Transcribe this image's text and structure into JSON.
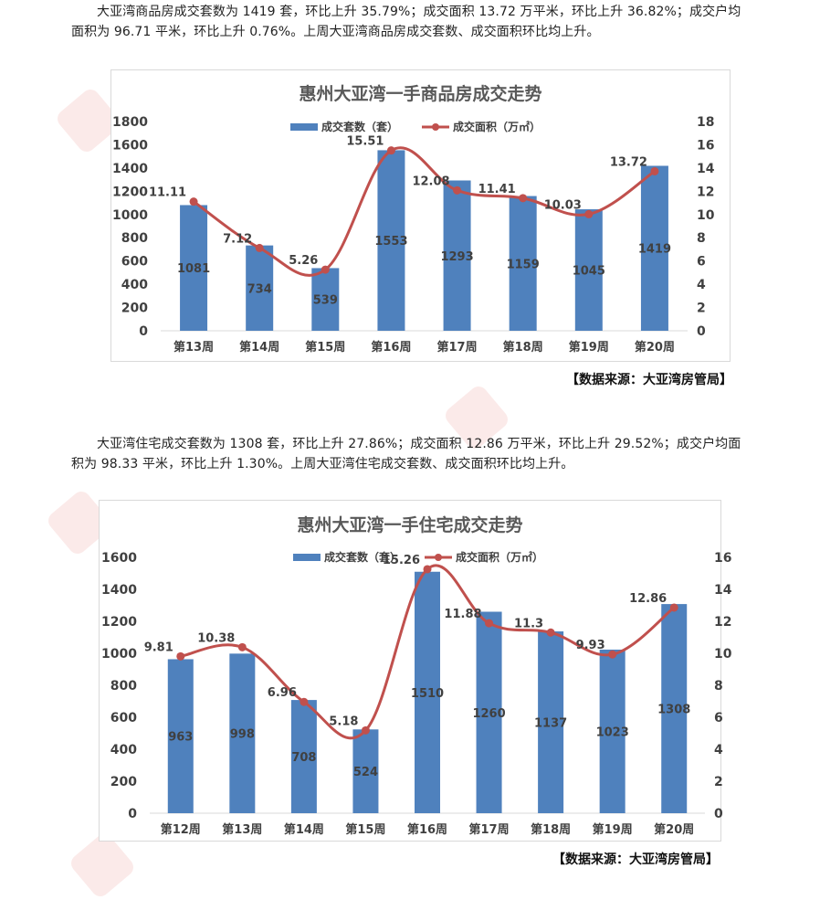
{
  "paragraphs": {
    "p1": "大亚湾商品房成交套数为 1419 套，环比上升 35.79%；成交面积 13.72 万平米，环比上升 36.82%；成交户均面积为 96.71 平米，环比上升 0.76%。上周大亚湾商品房成交套数、成交面积环比均上升。",
    "p2": "大亚湾住宅成交套数为 1308 套，环比上升 27.86%；成交面积 12.86 万平米，环比上升 29.52%；成交户均面积为 98.33 平米，环比上升 1.30%。上周大亚湾住宅成交套数、成交面积环比均上升。"
  },
  "sources": {
    "s1": "【数据来源：大亚湾房管局】",
    "s2": "【数据来源：大亚湾房管局】"
  },
  "colors": {
    "bar": "#4f81bd",
    "line": "#c0504d",
    "watermark": "#dc5046"
  },
  "chart_data": [
    {
      "type": "bar",
      "title": "惠州大亚湾一手商品房成交走势",
      "categories": [
        "第13周",
        "第14周",
        "第15周",
        "第16周",
        "第17周",
        "第18周",
        "第19周",
        "第20周"
      ],
      "series": [
        {
          "name": "成交套数（套）",
          "type": "bar",
          "axis": "left",
          "values": [
            1081,
            734,
            539,
            1553,
            1293,
            1159,
            1045,
            1419
          ]
        },
        {
          "name": "成交面积（万㎡）",
          "type": "line",
          "axis": "right",
          "values": [
            11.11,
            7.12,
            5.26,
            15.51,
            12.08,
            11.41,
            10.03,
            13.72
          ]
        }
      ],
      "ylim": [
        0,
        1800
      ],
      "y_ticks": [
        0,
        200,
        400,
        600,
        800,
        1000,
        1200,
        1400,
        1600,
        1800
      ],
      "y2lim": [
        0,
        18
      ],
      "y2_ticks": [
        0,
        2,
        4,
        6,
        8,
        10,
        12,
        14,
        16,
        18
      ],
      "legend": "top",
      "grid": false
    },
    {
      "type": "bar",
      "title": "惠州大亚湾一手住宅成交走势",
      "categories": [
        "第12周",
        "第13周",
        "第14周",
        "第15周",
        "第16周",
        "第17周",
        "第18周",
        "第19周",
        "第20周"
      ],
      "series": [
        {
          "name": "成交套数（套）",
          "type": "bar",
          "axis": "left",
          "values": [
            963,
            998,
            708,
            524,
            1510,
            1260,
            1137,
            1023,
            1308
          ]
        },
        {
          "name": "成交面积（万㎡）",
          "type": "line",
          "axis": "right",
          "values": [
            9.81,
            10.38,
            6.96,
            5.18,
            15.26,
            11.88,
            11.3,
            9.93,
            12.86
          ]
        }
      ],
      "ylim": [
        0,
        1600
      ],
      "y_ticks": [
        0,
        200,
        400,
        600,
        800,
        1000,
        1200,
        1400,
        1600
      ],
      "y2lim": [
        0,
        16
      ],
      "y2_ticks": [
        0,
        2,
        4,
        6,
        8,
        10,
        12,
        14,
        16
      ],
      "legend": "top",
      "grid": false
    }
  ]
}
